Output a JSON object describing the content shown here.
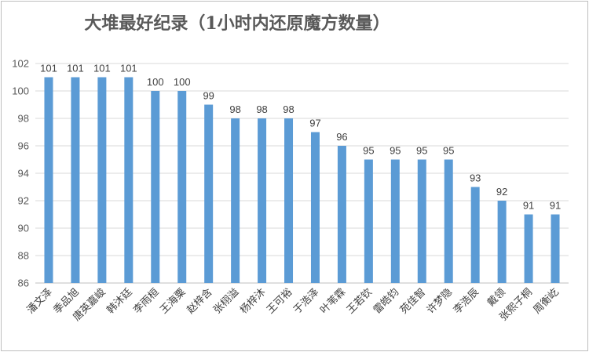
{
  "chart_data": {
    "type": "bar",
    "title": "大堆最好纪录（1小时内还原魔方数量）",
    "xlabel": "",
    "ylabel": "",
    "categories": [
      "潘文泽",
      "季品旭",
      "唐英嘉峻",
      "韩沐廷",
      "李雨桓",
      "王海粟",
      "赵梓含",
      "张栩溢",
      "杨梓沐",
      "王可裕",
      "于浩泽",
      "叶苇霖",
      "王若钦",
      "雷皓钧",
      "苑佳智",
      "许梦隐",
      "李浩辰",
      "戴领",
      "张熙子桐",
      "周衡屹"
    ],
    "values": [
      101,
      101,
      101,
      101,
      100,
      100,
      99,
      98,
      98,
      98,
      97,
      96,
      95,
      95,
      95,
      95,
      93,
      92,
      91,
      91
    ],
    "ylim": [
      86,
      102
    ],
    "yticks": [
      86,
      88,
      90,
      92,
      94,
      96,
      98,
      100,
      102
    ],
    "grid": true,
    "legend": "none",
    "bar_color": "#5b9bd5",
    "grid_color": "#d9d9d9"
  }
}
